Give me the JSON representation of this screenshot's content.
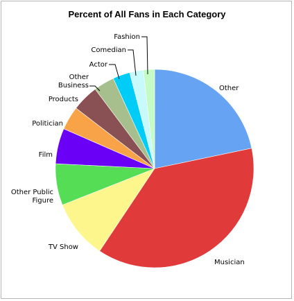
{
  "chart_data": {
    "type": "pie",
    "title": "Percent of All Fans in Each Category",
    "categories": [
      "Other",
      "Musician",
      "TV Show",
      "Other Public Figure",
      "Film",
      "Politician",
      "Products",
      "Other Business",
      "Actor",
      "Comedian",
      "Fashion"
    ],
    "values": [
      22.5,
      39.0,
      10.0,
      7.0,
      6.0,
      4.0,
      4.5,
      3.5,
      2.9,
      2.3,
      1.9
    ],
    "colors": [
      "#66a3f2",
      "#e03a3a",
      "#fdf68c",
      "#55de55",
      "#6b00f7",
      "#f9a348",
      "#8a5154",
      "#a6bf8c",
      "#00ccf8",
      "#c8fafc",
      "#c5fcc5"
    ],
    "start_angle_deg": 0,
    "direction": "clockwise"
  }
}
